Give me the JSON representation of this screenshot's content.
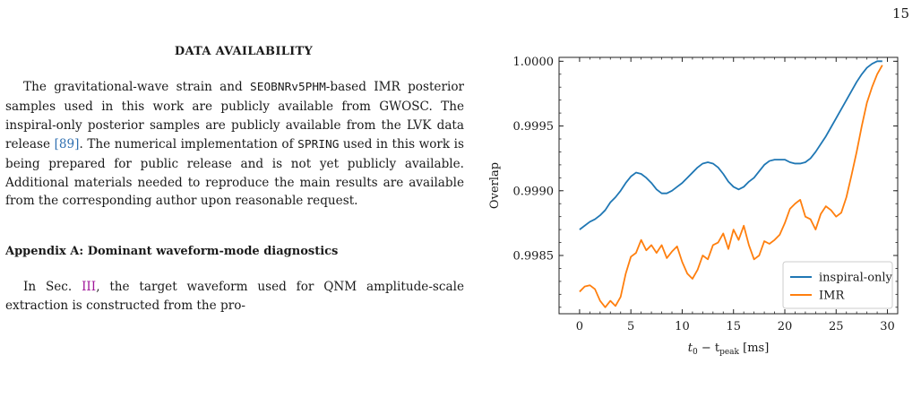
{
  "page_number": "15",
  "data_availability": {
    "heading": "DATA AVAILABILITY",
    "p1": "The gravitational-wave strain and ",
    "code1": "SEOBNRv5PHM",
    "p2": "-based IMR posterior samples used in this work are publicly available from GWOSC. The inspiral-only posterior samples are publicly available from the LVK data release ",
    "cite": "[89]",
    "p3": ". The numerical implementation of ",
    "code2": "SPRING",
    "p4": " used in this work is being prepared for public release and is not yet publicly available. Additional materials needed to reproduce the main results are available from the corresponding author upon reasonable request."
  },
  "appendix": {
    "heading": "Appendix A: Dominant waveform-mode diagnostics",
    "p1": "In Sec. ",
    "sec_ref": "III",
    "p2": ", the target waveform used for QNM amplitude-scale extraction is constructed from the pro-"
  },
  "chart_data": {
    "type": "line",
    "xlabel": "t₀ − t_peak [ms]",
    "xlabel_main": "t",
    "xlabel_sub0": "0",
    "xlabel_minus": " − t",
    "xlabel_sub1": "peak",
    "xlabel_unit": " [ms]",
    "ylabel": "Overlap",
    "xlim": [
      -2,
      31
    ],
    "ylim": [
      0.99805,
      1.00003
    ],
    "xticks": [
      0,
      5,
      10,
      15,
      20,
      25,
      30
    ],
    "yticks": [
      0.9985,
      0.999,
      0.9995,
      1.0
    ],
    "ytick_labels": [
      "0.9985",
      "0.9990",
      "0.9995",
      "1.0000"
    ],
    "legend_position": "bottom-right",
    "grid": false,
    "series": [
      {
        "name": "inspiral-only",
        "color": "#1f77b4",
        "x": [
          0,
          0.5,
          1,
          1.5,
          2,
          2.5,
          3,
          3.5,
          4,
          4.5,
          5,
          5.5,
          6,
          6.5,
          7,
          7.5,
          8,
          8.5,
          9,
          9.5,
          10,
          10.5,
          11,
          11.5,
          12,
          12.5,
          13,
          13.5,
          14,
          14.5,
          15,
          15.5,
          16,
          16.5,
          17,
          17.5,
          18,
          18.5,
          19,
          19.5,
          20,
          20.5,
          21,
          21.5,
          22,
          22.5,
          23,
          23.5,
          24,
          24.5,
          25,
          25.5,
          26,
          26.5,
          27,
          27.5,
          28,
          28.5,
          29,
          29.5
        ],
        "y": [
          0.9987,
          0.99873,
          0.99876,
          0.99878,
          0.99881,
          0.99885,
          0.99891,
          0.99895,
          0.999,
          0.99906,
          0.99911,
          0.99914,
          0.99913,
          0.9991,
          0.99906,
          0.99901,
          0.99898,
          0.99898,
          0.999,
          0.99903,
          0.99906,
          0.9991,
          0.99914,
          0.99918,
          0.99921,
          0.99922,
          0.99921,
          0.99918,
          0.99913,
          0.99907,
          0.99903,
          0.99901,
          0.99903,
          0.99907,
          0.9991,
          0.99915,
          0.9992,
          0.99923,
          0.99924,
          0.99924,
          0.99924,
          0.99922,
          0.99921,
          0.99921,
          0.99922,
          0.99925,
          0.9993,
          0.99936,
          0.99942,
          0.99949,
          0.99956,
          0.99963,
          0.9997,
          0.99977,
          0.99984,
          0.9999,
          0.99995,
          0.99998,
          1.0,
          1.0
        ]
      },
      {
        "name": "IMR",
        "color": "#ff7f0e",
        "x": [
          0,
          0.5,
          1,
          1.5,
          2,
          2.5,
          3,
          3.5,
          4,
          4.5,
          5,
          5.5,
          6,
          6.5,
          7,
          7.5,
          8,
          8.5,
          9,
          9.5,
          10,
          10.5,
          11,
          11.5,
          12,
          12.5,
          13,
          13.5,
          14,
          14.5,
          15,
          15.5,
          16,
          16.5,
          17,
          17.5,
          18,
          18.5,
          19,
          19.5,
          20,
          20.5,
          21,
          21.5,
          22,
          22.5,
          23,
          23.5,
          24,
          24.5,
          25,
          25.5,
          26,
          26.5,
          27,
          27.5,
          28,
          28.5,
          29,
          29.5
        ],
        "y": [
          0.99822,
          0.99826,
          0.99827,
          0.99824,
          0.99815,
          0.9981,
          0.99815,
          0.99811,
          0.99818,
          0.99836,
          0.99849,
          0.99852,
          0.99862,
          0.99854,
          0.99858,
          0.99852,
          0.99858,
          0.99848,
          0.99853,
          0.99857,
          0.99845,
          0.99836,
          0.99832,
          0.99839,
          0.9985,
          0.99847,
          0.99858,
          0.9986,
          0.99867,
          0.99855,
          0.9987,
          0.99862,
          0.99873,
          0.99858,
          0.99847,
          0.9985,
          0.99861,
          0.99859,
          0.99862,
          0.99866,
          0.99875,
          0.99886,
          0.9989,
          0.99893,
          0.9988,
          0.99878,
          0.9987,
          0.99882,
          0.99888,
          0.99885,
          0.9988,
          0.99883,
          0.99895,
          0.99912,
          0.9993,
          0.9995,
          0.99968,
          0.9998,
          0.9999,
          0.99997
        ]
      }
    ]
  }
}
